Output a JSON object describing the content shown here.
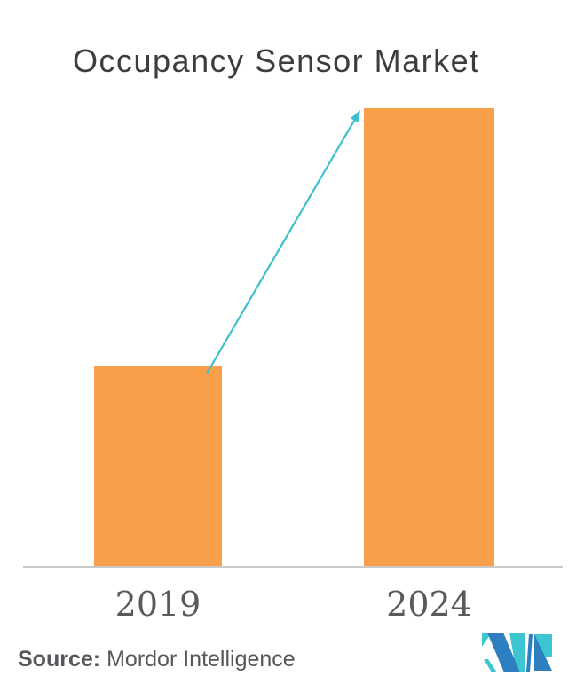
{
  "title": "Occupancy Sensor Market",
  "source": {
    "label": "Source:",
    "text": "Mordor Intelligence"
  },
  "colors": {
    "bar": "#FA9F49",
    "arrow": "#3EC0CC",
    "axis": "#C9C9C9",
    "title_text": "#3D3D3D",
    "label_text": "#5A5A5A",
    "logo_blue": "#2E7FC0",
    "logo_teal": "#3EC6D0"
  },
  "logo": {
    "icon": "mordor-intelligence-m-monogram"
  },
  "chart_data": {
    "type": "bar",
    "title": "Occupancy Sensor Market",
    "categories": [
      "2019",
      "2024"
    ],
    "values": [
      43.7,
      100
    ],
    "value_note": "relative bar heights in percent; chart shows no numeric value axis",
    "xlabel": "",
    "ylabel": "",
    "ylim": [
      0,
      100
    ],
    "grid": false,
    "legend": "none",
    "annotations": [
      "teal growth arrow pointing from top of 2019 bar to top of 2024 bar"
    ]
  }
}
